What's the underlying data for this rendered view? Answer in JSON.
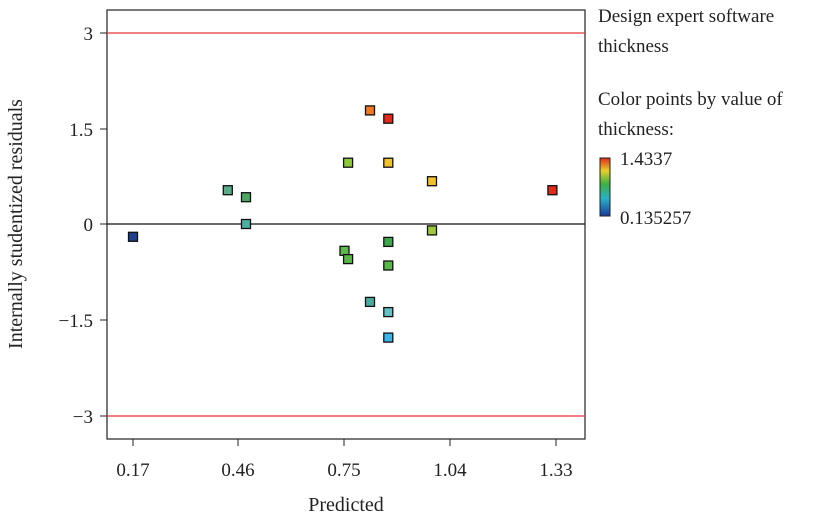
{
  "legend": {
    "heading_line1": "Design expert software",
    "heading_line2": "thickness",
    "color_line1": "Color points by value of",
    "color_line2": "thickness:",
    "max_value": "1.4337",
    "min_value": "0.135257"
  },
  "colors": {
    "reference_line": "#e8353b",
    "zero_line": "#111111",
    "axis": "#222222",
    "gradient": [
      "#1a3a9c",
      "#28b0c8",
      "#3cb043",
      "#e6d02a",
      "#e02a1a"
    ]
  },
  "chart_data": {
    "type": "scatter",
    "title": "",
    "xlabel": "Predicted",
    "ylabel": "Internally studentized residuals",
    "xlim": [
      0.09,
      1.39
    ],
    "ylim": [
      -3.45,
      3.45
    ],
    "x_ticks": [
      "0.17",
      "0.46",
      "0.75",
      "1.04",
      "1.33"
    ],
    "y_ticks": [
      "3",
      "1.5",
      "0",
      "−1.5",
      "−3"
    ],
    "reference_lines": [
      3,
      -3
    ],
    "zero_line": 0,
    "color_scale": {
      "min": 0.135257,
      "max": 1.4337
    },
    "points": [
      {
        "x": 0.17,
        "y": -0.2,
        "color": "#1f3f8f"
      },
      {
        "x": 0.43,
        "y": 0.53,
        "color": "#5aab8a"
      },
      {
        "x": 0.48,
        "y": 0.42,
        "color": "#4aa660"
      },
      {
        "x": 0.48,
        "y": 0.0,
        "color": "#4ab0a0"
      },
      {
        "x": 0.76,
        "y": 0.96,
        "color": "#8cc83a"
      },
      {
        "x": 0.75,
        "y": -0.42,
        "color": "#5cba4a"
      },
      {
        "x": 0.76,
        "y": -0.55,
        "color": "#58b648"
      },
      {
        "x": 0.82,
        "y": 1.78,
        "color": "#f07a22"
      },
      {
        "x": 0.82,
        "y": -1.22,
        "color": "#4aac9a"
      },
      {
        "x": 0.87,
        "y": 1.65,
        "color": "#e22a1a"
      },
      {
        "x": 0.87,
        "y": 0.96,
        "color": "#f2c22a"
      },
      {
        "x": 0.87,
        "y": -0.28,
        "color": "#3ca84a"
      },
      {
        "x": 0.87,
        "y": -0.65,
        "color": "#58b648"
      },
      {
        "x": 0.87,
        "y": -1.38,
        "color": "#62c0c6"
      },
      {
        "x": 0.87,
        "y": -1.78,
        "color": "#38b4ea"
      },
      {
        "x": 0.99,
        "y": 0.67,
        "color": "#f2c02a"
      },
      {
        "x": 0.99,
        "y": -0.1,
        "color": "#9ec83a"
      },
      {
        "x": 1.32,
        "y": 0.53,
        "color": "#e02a1a"
      }
    ]
  }
}
